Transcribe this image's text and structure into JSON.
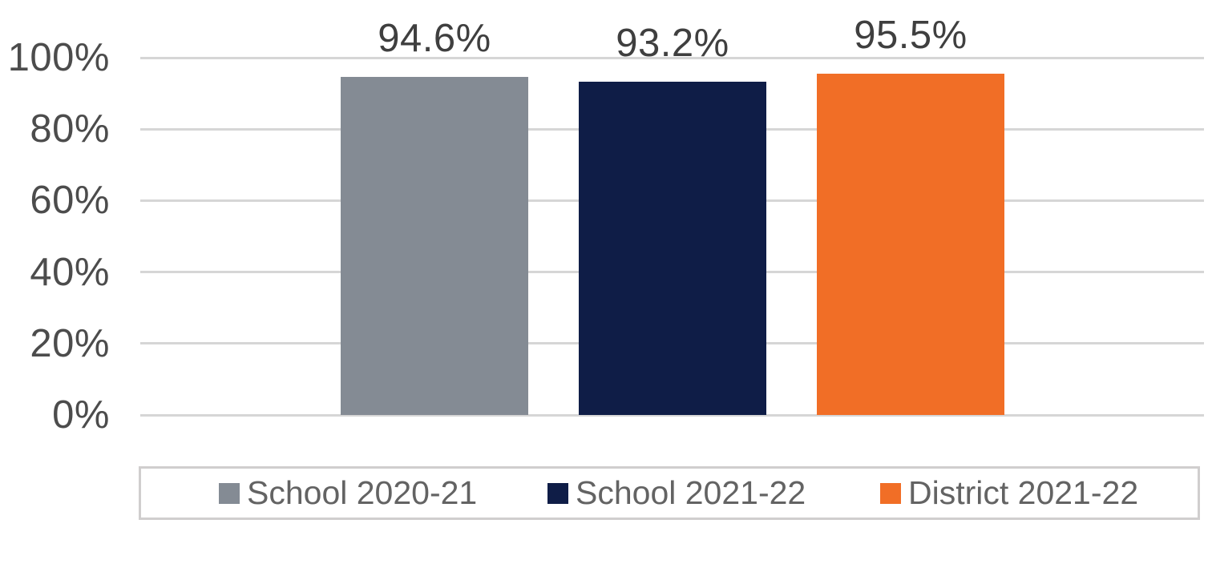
{
  "chart_data": {
    "type": "bar",
    "title": "",
    "xlabel": "",
    "ylabel": "",
    "categories": [
      ""
    ],
    "series": [
      {
        "name": "School 2020-21",
        "values": [
          94.6
        ],
        "data_label": "94.6%",
        "color": "#848B94"
      },
      {
        "name": "School 2021-22",
        "values": [
          93.2
        ],
        "data_label": "93.2%",
        "color": "#0F1D47"
      },
      {
        "name": "District 2021-22",
        "values": [
          95.5
        ],
        "data_label": "95.5%",
        "color": "#F16E26"
      }
    ],
    "y_axis": {
      "min": 0,
      "max": 100,
      "ticks": [
        {
          "value": 100,
          "label": "100%"
        },
        {
          "value": 80,
          "label": "80%"
        },
        {
          "value": 60,
          "label": "60%"
        },
        {
          "value": 40,
          "label": "40%"
        },
        {
          "value": 20,
          "label": "20%"
        },
        {
          "value": 0,
          "label": "0%"
        }
      ]
    },
    "grid": "horizontal",
    "legend_position": "bottom"
  },
  "colors": {
    "background": "#FFFFFF",
    "gridline": "#D6D6D6",
    "axis_text": "#4C4C4C",
    "data_label_text": "#3F3F3F",
    "legend_text": "#636363",
    "legend_border": "#D0CECE"
  }
}
